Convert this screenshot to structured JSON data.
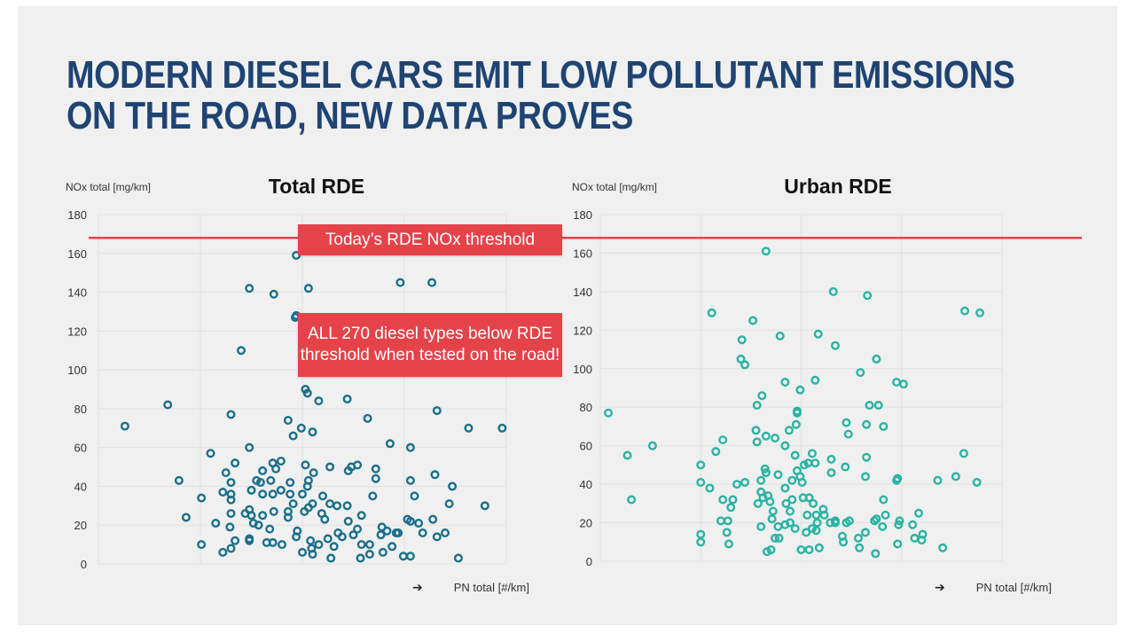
{
  "title": {
    "line1": "MODERN DIESEL CARS EMIT LOW POLLUTANT EMISSIONS",
    "line2": "ON THE ROAD, NEW DATA PROVES"
  },
  "callouts": {
    "threshold": "Today’s RDE NOx threshold",
    "all_line1": "ALL 270 diesel types below RDE",
    "all_line2": "threshold when tested on the road!"
  },
  "colors": {
    "title": "#1f4473",
    "threshold": "#e4434a",
    "total_series": "#1b6f8a",
    "urban_series": "#2bb3a3",
    "background": "#eff0ef"
  },
  "chart_data": [
    {
      "type": "scatter",
      "title": "Total RDE",
      "ylabel": "NOx total [mg/km]",
      "xlabel": "PN total [#/km]",
      "xlabel_icon": "arrow-right-icon",
      "ylim": [
        0,
        180
      ],
      "yticks": [
        "0",
        "20",
        "40",
        "60",
        "80",
        "100",
        "120",
        "140",
        "160",
        "180"
      ],
      "xlim": [
        0,
        4
      ],
      "grid": true,
      "threshold": 168,
      "points": [
        [
          0.26,
          71
        ],
        [
          0.68,
          82
        ],
        [
          0.79,
          43
        ],
        [
          0.86,
          24
        ],
        [
          1.01,
          34
        ],
        [
          1.01,
          10
        ],
        [
          1.1,
          57
        ],
        [
          1.15,
          21
        ],
        [
          1.22,
          37
        ],
        [
          1.22,
          6
        ],
        [
          1.25,
          47
        ],
        [
          1.29,
          19
        ],
        [
          1.3,
          77
        ],
        [
          1.3,
          8
        ],
        [
          1.3,
          42
        ],
        [
          1.3,
          36
        ],
        [
          1.3,
          33
        ],
        [
          1.3,
          26
        ],
        [
          1.34,
          52
        ],
        [
          1.34,
          12
        ],
        [
          1.4,
          110
        ],
        [
          1.48,
          142
        ],
        [
          1.48,
          60
        ],
        [
          1.48,
          28
        ],
        [
          1.48,
          13
        ],
        [
          1.48,
          12
        ],
        [
          1.44,
          26
        ],
        [
          1.5,
          25
        ],
        [
          1.5,
          38
        ],
        [
          1.52,
          21
        ],
        [
          1.55,
          43
        ],
        [
          1.57,
          20
        ],
        [
          1.59,
          42
        ],
        [
          1.61,
          48
        ],
        [
          1.61,
          36
        ],
        [
          1.61,
          25
        ],
        [
          1.65,
          11
        ],
        [
          1.68,
          18
        ],
        [
          1.69,
          43
        ],
        [
          1.71,
          52
        ],
        [
          1.71,
          36
        ],
        [
          1.71,
          11
        ],
        [
          1.72,
          139
        ],
        [
          1.72,
          27
        ],
        [
          1.74,
          49
        ],
        [
          1.79,
          53
        ],
        [
          1.79,
          38
        ],
        [
          1.8,
          10
        ],
        [
          1.86,
          74
        ],
        [
          1.86,
          24
        ],
        [
          1.86,
          27
        ],
        [
          1.88,
          42
        ],
        [
          1.88,
          36
        ],
        [
          1.91,
          66
        ],
        [
          1.91,
          31
        ],
        [
          1.93,
          127
        ],
        [
          1.94,
          128
        ],
        [
          1.94,
          159
        ],
        [
          1.95,
          17
        ],
        [
          1.94,
          14
        ],
        [
          1.99,
          70
        ],
        [
          2.0,
          36
        ],
        [
          2.0,
          6
        ],
        [
          2.02,
          27
        ],
        [
          2.03,
          90
        ],
        [
          2.03,
          51
        ],
        [
          2.05,
          40
        ],
        [
          2.05,
          88
        ],
        [
          2.06,
          43
        ],
        [
          2.06,
          29
        ],
        [
          2.06,
          142
        ],
        [
          2.08,
          12
        ],
        [
          2.09,
          8
        ],
        [
          2.1,
          31
        ],
        [
          2.1,
          68
        ],
        [
          2.1,
          5
        ],
        [
          2.11,
          47
        ],
        [
          2.16,
          84
        ],
        [
          2.16,
          10
        ],
        [
          2.2,
          35
        ],
        [
          2.22,
          23
        ],
        [
          2.19,
          26
        ],
        [
          2.25,
          13
        ],
        [
          2.27,
          31
        ],
        [
          2.27,
          50
        ],
        [
          2.28,
          3
        ],
        [
          2.31,
          9
        ],
        [
          2.34,
          30
        ],
        [
          2.35,
          16
        ],
        [
          2.39,
          112
        ],
        [
          2.39,
          14
        ],
        [
          2.44,
          85
        ],
        [
          2.44,
          30
        ],
        [
          2.45,
          22
        ],
        [
          2.45,
          48
        ],
        [
          2.48,
          50
        ],
        [
          2.5,
          15
        ],
        [
          2.54,
          51
        ],
        [
          2.54,
          18
        ],
        [
          2.57,
          3
        ],
        [
          2.58,
          25
        ],
        [
          2.58,
          10
        ],
        [
          2.64,
          75
        ],
        [
          2.66,
          10
        ],
        [
          2.66,
          5
        ],
        [
          2.69,
          35
        ],
        [
          2.72,
          49
        ],
        [
          2.72,
          44
        ],
        [
          2.78,
          19
        ],
        [
          2.77,
          15
        ],
        [
          2.79,
          6
        ],
        [
          2.83,
          17
        ],
        [
          2.86,
          62
        ],
        [
          2.88,
          9
        ],
        [
          2.92,
          16
        ],
        [
          2.94,
          16
        ],
        [
          2.96,
          145
        ],
        [
          2.99,
          4
        ],
        [
          3.03,
          23
        ],
        [
          3.06,
          43
        ],
        [
          3.06,
          60
        ],
        [
          3.06,
          4
        ],
        [
          3.06,
          22
        ],
        [
          3.1,
          35
        ],
        [
          3.14,
          21
        ],
        [
          3.18,
          16
        ],
        [
          3.27,
          145
        ],
        [
          3.28,
          23
        ],
        [
          3.3,
          46
        ],
        [
          3.32,
          79
        ],
        [
          3.32,
          14
        ],
        [
          3.4,
          16
        ],
        [
          3.44,
          31
        ],
        [
          3.47,
          40
        ],
        [
          3.53,
          3
        ],
        [
          3.63,
          70
        ],
        [
          3.79,
          30
        ],
        [
          3.96,
          70
        ]
      ]
    },
    {
      "type": "scatter",
      "title": "Urban RDE",
      "ylabel": "NOx total [mg/km]",
      "xlabel": "PN total [#/km]",
      "xlabel_icon": "arrow-right-icon",
      "ylim": [
        0,
        180
      ],
      "yticks": [
        "0",
        "20",
        "40",
        "60",
        "80",
        "100",
        "120",
        "140",
        "160",
        "180"
      ],
      "xlim": [
        0,
        4
      ],
      "grid": true,
      "threshold": 168,
      "points": [
        [
          0.08,
          77
        ],
        [
          0.27,
          55
        ],
        [
          0.31,
          32
        ],
        [
          0.52,
          60
        ],
        [
          1.0,
          50
        ],
        [
          1.0,
          41
        ],
        [
          1.0,
          14
        ],
        [
          1.0,
          10
        ],
        [
          1.09,
          38
        ],
        [
          1.11,
          129
        ],
        [
          1.15,
          57
        ],
        [
          1.2,
          21
        ],
        [
          1.22,
          63
        ],
        [
          1.22,
          32
        ],
        [
          1.26,
          15
        ],
        [
          1.27,
          21
        ],
        [
          1.28,
          9
        ],
        [
          1.3,
          28
        ],
        [
          1.32,
          32
        ],
        [
          1.36,
          40
        ],
        [
          1.41,
          115
        ],
        [
          1.4,
          105
        ],
        [
          1.44,
          102
        ],
        [
          1.44,
          41
        ],
        [
          1.52,
          125
        ],
        [
          1.55,
          68
        ],
        [
          1.56,
          81
        ],
        [
          1.56,
          62
        ],
        [
          1.57,
          30
        ],
        [
          1.6,
          42
        ],
        [
          1.6,
          18
        ],
        [
          1.6,
          36
        ],
        [
          1.61,
          86
        ],
        [
          1.62,
          33
        ],
        [
          1.64,
          48
        ],
        [
          1.65,
          46
        ],
        [
          1.65,
          161
        ],
        [
          1.65,
          65
        ],
        [
          1.66,
          5
        ],
        [
          1.67,
          34
        ],
        [
          1.69,
          31
        ],
        [
          1.7,
          6
        ],
        [
          1.71,
          22
        ],
        [
          1.72,
          26
        ],
        [
          1.74,
          64
        ],
        [
          1.74,
          12
        ],
        [
          1.77,
          45
        ],
        [
          1.77,
          18
        ],
        [
          1.78,
          12
        ],
        [
          1.79,
          117
        ],
        [
          1.84,
          93
        ],
        [
          1.84,
          60
        ],
        [
          1.84,
          38
        ],
        [
          1.84,
          19
        ],
        [
          1.85,
          30
        ],
        [
          1.88,
          68
        ],
        [
          1.89,
          26
        ],
        [
          1.89,
          20
        ],
        [
          1.91,
          42
        ],
        [
          1.91,
          32
        ],
        [
          1.94,
          55
        ],
        [
          1.94,
          17
        ],
        [
          1.95,
          71
        ],
        [
          1.96,
          78
        ],
        [
          1.96,
          77
        ],
        [
          1.96,
          47
        ],
        [
          1.99,
          89
        ],
        [
          1.99,
          44
        ],
        [
          2.0,
          6
        ],
        [
          2.01,
          41
        ],
        [
          2.02,
          33
        ],
        [
          2.03,
          50
        ],
        [
          2.05,
          15
        ],
        [
          2.06,
          24
        ],
        [
          2.07,
          51
        ],
        [
          2.08,
          33
        ],
        [
          2.08,
          6
        ],
        [
          2.11,
          56
        ],
        [
          2.11,
          17
        ],
        [
          2.12,
          30
        ],
        [
          2.14,
          51
        ],
        [
          2.14,
          94
        ],
        [
          2.15,
          16
        ],
        [
          2.15,
          24
        ],
        [
          2.16,
          20
        ],
        [
          2.17,
          118
        ],
        [
          2.18,
          7
        ],
        [
          2.22,
          27
        ],
        [
          2.23,
          24
        ],
        [
          2.29,
          20
        ],
        [
          2.3,
          53
        ],
        [
          2.3,
          46
        ],
        [
          2.32,
          140
        ],
        [
          2.34,
          112
        ],
        [
          2.34,
          20
        ],
        [
          2.34,
          21
        ],
        [
          2.41,
          13
        ],
        [
          2.42,
          10
        ],
        [
          2.44,
          49
        ],
        [
          2.45,
          72
        ],
        [
          2.45,
          20
        ],
        [
          2.47,
          66
        ],
        [
          2.48,
          21
        ],
        [
          2.57,
          12
        ],
        [
          2.58,
          7
        ],
        [
          2.59,
          98
        ],
        [
          2.64,
          15
        ],
        [
          2.64,
          44
        ],
        [
          2.65,
          71
        ],
        [
          2.65,
          54
        ],
        [
          2.66,
          138
        ],
        [
          2.68,
          81
        ],
        [
          2.73,
          21
        ],
        [
          2.74,
          4
        ],
        [
          2.75,
          105
        ],
        [
          2.75,
          22
        ],
        [
          2.77,
          81
        ],
        [
          2.81,
          18
        ],
        [
          2.82,
          70
        ],
        [
          2.82,
          32
        ],
        [
          2.84,
          24
        ],
        [
          2.95,
          93
        ],
        [
          2.95,
          42
        ],
        [
          2.96,
          9
        ],
        [
          2.96,
          43
        ],
        [
          2.97,
          19
        ],
        [
          2.98,
          21
        ],
        [
          3.02,
          92
        ],
        [
          3.11,
          19
        ],
        [
          3.13,
          12
        ],
        [
          3.17,
          25
        ],
        [
          3.2,
          11
        ],
        [
          3.21,
          14
        ],
        [
          3.36,
          42
        ],
        [
          3.41,
          7
        ],
        [
          3.54,
          44
        ],
        [
          3.62,
          56
        ],
        [
          3.63,
          130
        ],
        [
          3.75,
          41
        ],
        [
          3.78,
          129
        ]
      ]
    }
  ]
}
